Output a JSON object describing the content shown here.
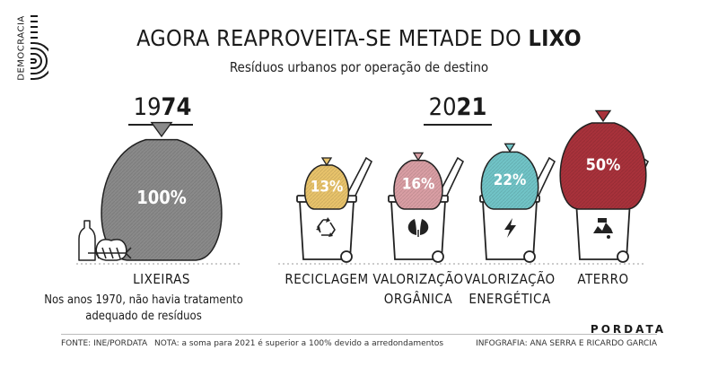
{
  "brand": {
    "vertical_text": "DEMOCRACIA",
    "publisher": "PORDATA"
  },
  "title": {
    "regular": "AGORA REAPROVEITA-SE METADE DO ",
    "bold": "LIXO"
  },
  "subtitle": "Resíduos urbanos por operação de destino",
  "years": [
    {
      "regular": "19",
      "bold": "74"
    },
    {
      "regular": "20",
      "bold": "21"
    }
  ],
  "note_1974": {
    "line1": "Nos anos 1970, não havia tratamento",
    "line2": "adequado de resíduos"
  },
  "footer": {
    "source": "FONTE: INE/PORDATA",
    "note": "NOTA: a soma para 2021 é superior a 100% devido a arredondamentos",
    "credits": "INFOGRAFIA: ANA SERRA E RICARDO GARCIA"
  },
  "colors": {
    "lixeiras": "#8a8a8a",
    "reciclagem": "#e8c36b",
    "valorizacao_organica": "#d99ea4",
    "valorizacao_energetica": "#71c4c7",
    "aterro": "#a8323b",
    "bin": "#ffffff"
  },
  "chart_data": [
    {
      "type": "pie",
      "title": "1974",
      "categories": [
        "LIXEIRAS"
      ],
      "values": [
        100
      ],
      "labels": [
        "100%"
      ]
    },
    {
      "type": "bar",
      "title": "2021",
      "categories": [
        "RECICLAGEM",
        "VALORIZAÇÃO ORGÂNICA",
        "VALORIZAÇÃO ENERGÉTICA",
        "ATERRO"
      ],
      "category_lines": [
        [
          "RECICLAGEM"
        ],
        [
          "VALORIZAÇÃO",
          "ORGÂNICA"
        ],
        [
          "VALORIZAÇÃO",
          "ENERGÉTICA"
        ],
        [
          "ATERRO"
        ]
      ],
      "values": [
        13,
        16,
        22,
        50
      ],
      "labels": [
        "13%",
        "16%",
        "22%",
        "50%"
      ],
      "icons": [
        "recycle-icon",
        "leaf-icon",
        "lightning-icon",
        "landfill-icon"
      ]
    }
  ]
}
